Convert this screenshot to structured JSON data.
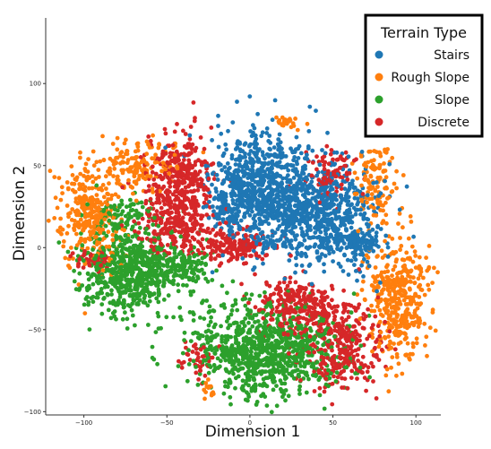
{
  "chart_data": {
    "type": "scatter",
    "xlabel": "Dimension 1",
    "ylabel": "Dimension 2",
    "xlim": [
      -123,
      115
    ],
    "ylim": [
      -102,
      140
    ],
    "x_ticks": [
      -100,
      -50,
      0,
      50,
      100
    ],
    "y_ticks": [
      -100,
      -50,
      0,
      50,
      100
    ],
    "x_tick_labels": [
      "−100",
      "−50",
      "0",
      "50",
      "100"
    ],
    "y_tick_labels": [
      "−100",
      "−50",
      "0",
      "50",
      "100"
    ],
    "grid": false,
    "legend": {
      "title": "Terrain Type",
      "placement": "top-right",
      "entries": [
        "Stairs",
        "Rough Slope",
        "Slope",
        "Discrete"
      ]
    },
    "series": [
      {
        "name": "Stairs",
        "color": "#1f77b4",
        "clusters": [
          {
            "cx": 5,
            "cy": 36,
            "sx": 14,
            "sy": 17,
            "n": 700
          },
          {
            "cx": 42,
            "cy": 22,
            "sx": 17,
            "sy": 17,
            "n": 750
          },
          {
            "cx": 65,
            "cy": 3,
            "sx": 6,
            "sy": 4,
            "n": 100
          },
          {
            "cx": -15,
            "cy": 24,
            "sx": 5,
            "sy": 7,
            "n": 60
          }
        ]
      },
      {
        "name": "Rough Slope",
        "color": "#ff7f0e",
        "clusters": [
          {
            "cx": -96,
            "cy": 20,
            "sx": 9,
            "sy": 15,
            "n": 300
          },
          {
            "cx": -68,
            "cy": 50,
            "sx": 12,
            "sy": 8,
            "n": 150
          },
          {
            "cx": 90,
            "cy": -32,
            "sx": 10,
            "sy": 18,
            "n": 400
          },
          {
            "cx": 75,
            "cy": 40,
            "sx": 6,
            "sy": 12,
            "n": 120
          },
          {
            "cx": 22,
            "cy": 76,
            "sx": 5,
            "sy": 2,
            "n": 25
          },
          {
            "cx": -26,
            "cy": -88,
            "sx": 3,
            "sy": 2,
            "n": 15
          }
        ]
      },
      {
        "name": "Slope",
        "color": "#2ca02c",
        "clusters": [
          {
            "cx": -72,
            "cy": -15,
            "sx": 14,
            "sy": 13,
            "n": 650
          },
          {
            "cx": 10,
            "cy": -62,
            "sx": 22,
            "sy": 14,
            "n": 900
          },
          {
            "cx": -40,
            "cy": -12,
            "sx": 9,
            "sy": 6,
            "n": 120
          },
          {
            "cx": -78,
            "cy": 20,
            "sx": 8,
            "sy": 6,
            "n": 80
          }
        ]
      },
      {
        "name": "Discrete",
        "color": "#d62728",
        "clusters": [
          {
            "cx": -42,
            "cy": 45,
            "sx": 10,
            "sy": 12,
            "n": 300
          },
          {
            "cx": -47,
            "cy": 15,
            "sx": 11,
            "sy": 10,
            "n": 250
          },
          {
            "cx": -10,
            "cy": 1,
            "sx": 12,
            "sy": 5,
            "n": 170
          },
          {
            "cx": 30,
            "cy": -35,
            "sx": 13,
            "sy": 9,
            "n": 250
          },
          {
            "cx": 55,
            "cy": -60,
            "sx": 12,
            "sy": 13,
            "n": 300
          },
          {
            "cx": 50,
            "cy": 45,
            "sx": 8,
            "sy": 8,
            "n": 90
          },
          {
            "cx": -95,
            "cy": -7,
            "sx": 6,
            "sy": 3,
            "n": 50
          },
          {
            "cx": -30,
            "cy": -68,
            "sx": 6,
            "sy": 6,
            "n": 40
          }
        ]
      }
    ]
  }
}
